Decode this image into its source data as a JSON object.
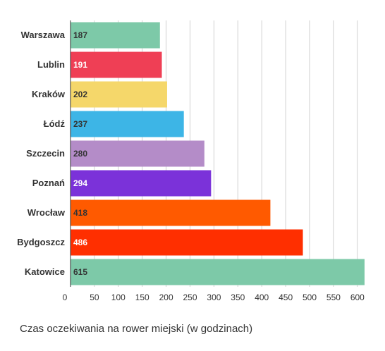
{
  "chart_data": {
    "type": "bar",
    "orientation": "horizontal",
    "categories": [
      "Warszawa",
      "Lublin",
      "Kraków",
      "Łódź",
      "Szczecin",
      "Poznań",
      "Wrocław",
      "Bydgoszcz",
      "Katowice"
    ],
    "values": [
      187,
      191,
      202,
      237,
      280,
      294,
      418,
      486,
      615
    ],
    "value_labels": [
      "187",
      "191",
      "202",
      "237",
      "280",
      "294",
      "418",
      "486",
      "615"
    ],
    "colors": [
      "#7dc9a8",
      "#ef3f55",
      "#f5d76a",
      "#3db5e6",
      "#b48cc8",
      "#7b32d9",
      "#ff5a00",
      "#ff2f00",
      "#7dc9a8"
    ],
    "label_colors": [
      "#333333",
      "#ffffff",
      "#333333",
      "#333333",
      "#333333",
      "#ffffff",
      "#333333",
      "#ffffff",
      "#333333"
    ],
    "xticks": [
      0,
      50,
      100,
      150,
      200,
      250,
      300,
      350,
      400,
      450,
      500,
      550,
      600
    ],
    "xlim": [
      0,
      615
    ],
    "xlabel": "Czas oczekiwania na rower miejski (w godzinach)",
    "ylabel": "",
    "title": "",
    "grid": true,
    "legend": "none"
  }
}
